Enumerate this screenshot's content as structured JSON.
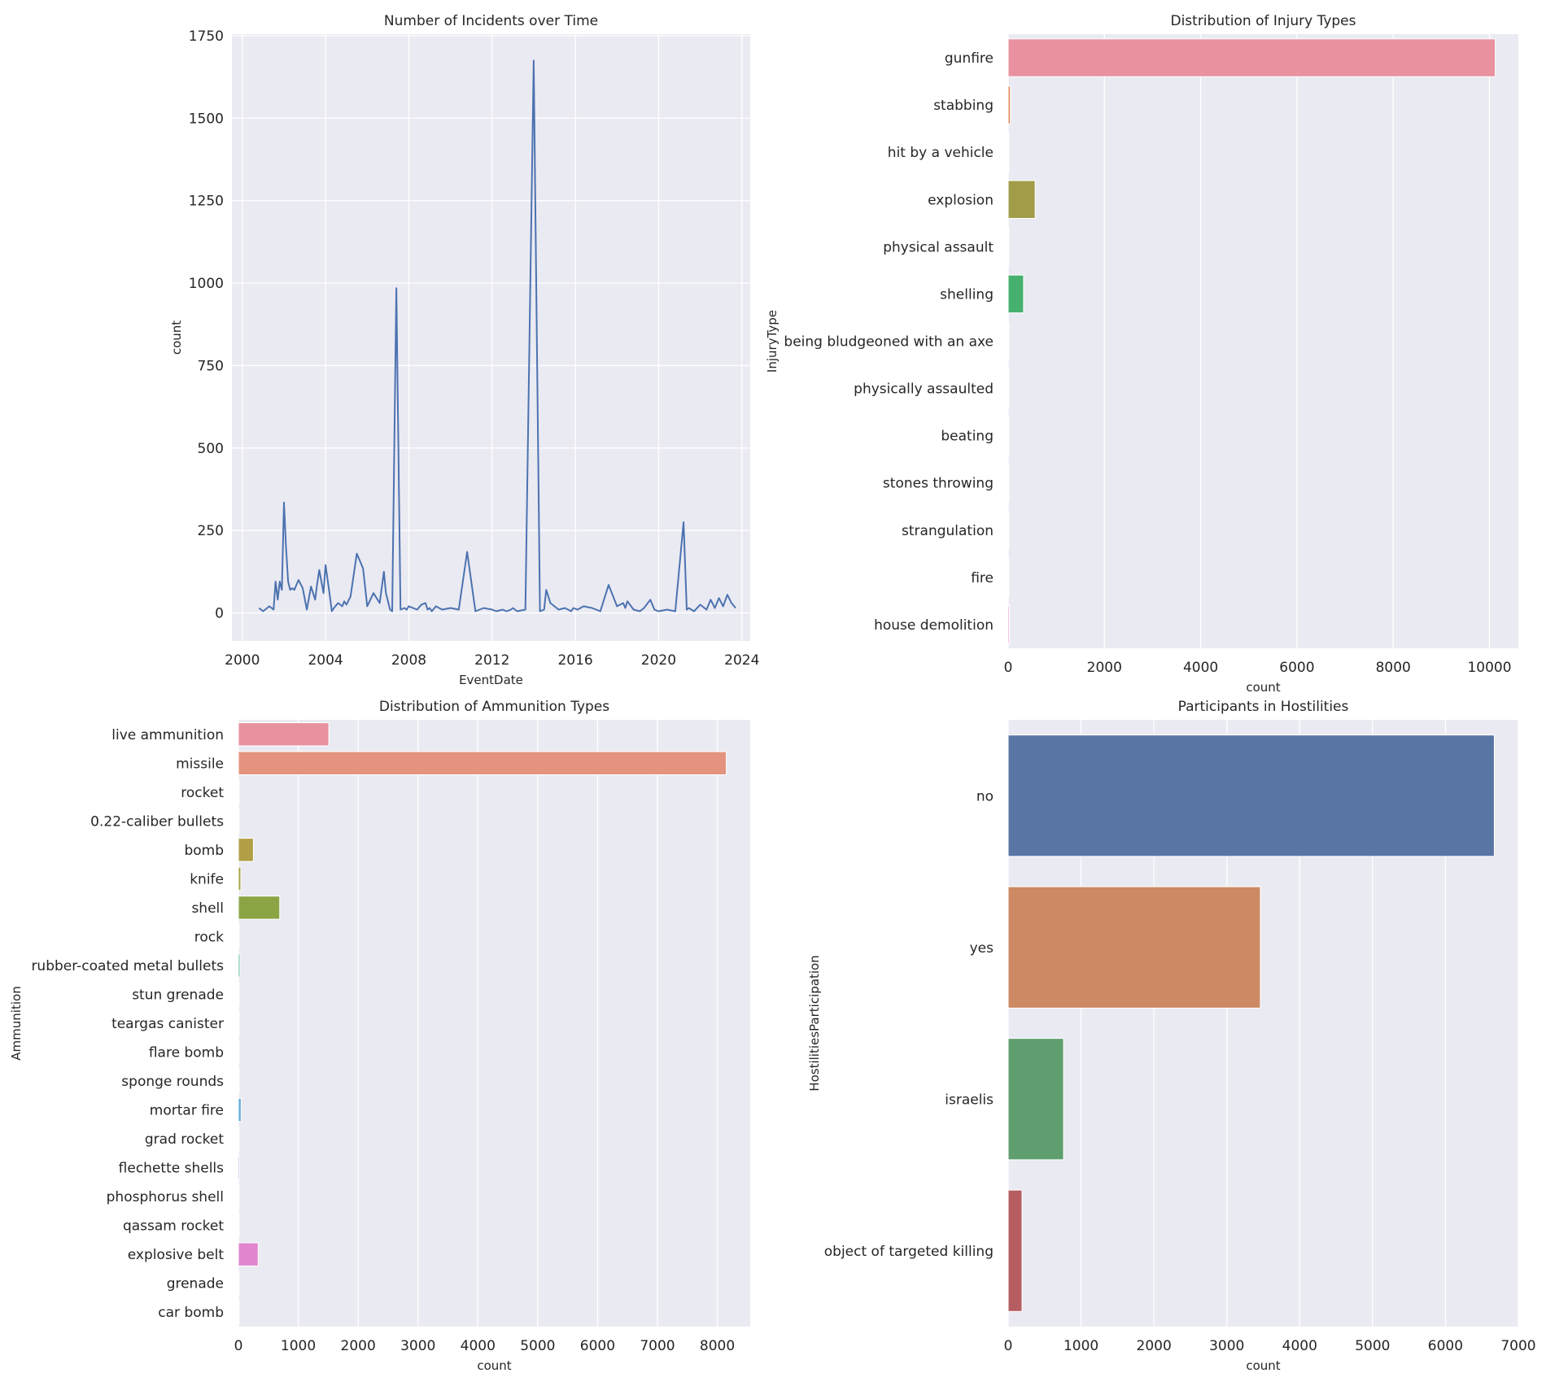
{
  "chart_data": [
    {
      "type": "line",
      "title": "Number of Incidents over Time",
      "xlabel": "EventDate",
      "ylabel": "count",
      "xlim": [
        1999.5,
        2024.4
      ],
      "ylim": [
        -85,
        1755
      ],
      "xticks": [
        2000,
        2004,
        2008,
        2012,
        2016,
        2020,
        2024
      ],
      "yticks": [
        0,
        250,
        500,
        750,
        1000,
        1250,
        1500,
        1750
      ],
      "xtick_labels": [
        "2000",
        "2004",
        "2008",
        "2012",
        "2016",
        "2020",
        "2024"
      ],
      "ytick_labels": [
        "0",
        "250",
        "500",
        "750",
        "1000",
        "1250",
        "1500",
        "1750"
      ],
      "color": "#4c72b0",
      "x": [
        2000.8,
        2001.0,
        2001.3,
        2001.5,
        2001.6,
        2001.7,
        2001.8,
        2001.9,
        2002.0,
        2002.1,
        2002.2,
        2002.3,
        2002.4,
        2002.5,
        2002.7,
        2002.9,
        2003.1,
        2003.3,
        2003.5,
        2003.6,
        2003.7,
        2003.9,
        2004.0,
        2004.2,
        2004.3,
        2004.4,
        2004.6,
        2004.8,
        2004.9,
        2005.0,
        2005.2,
        2005.5,
        2005.8,
        2006.0,
        2006.3,
        2006.5,
        2006.6,
        2006.8,
        2006.9,
        2007.1,
        2007.2,
        2007.4,
        2007.6,
        2007.8,
        2007.9,
        2008.0,
        2008.2,
        2008.4,
        2008.6,
        2008.8,
        2008.9,
        2009.0,
        2009.1,
        2009.3,
        2009.6,
        2010.0,
        2010.4,
        2010.8,
        2011.2,
        2011.6,
        2012.0,
        2012.2,
        2012.5,
        2012.7,
        2012.9,
        2013.0,
        2013.2,
        2013.6,
        2014.0,
        2014.3,
        2014.5,
        2014.6,
        2014.8,
        2015.2,
        2015.5,
        2015.8,
        2015.9,
        2016.1,
        2016.4,
        2016.8,
        2017.2,
        2017.6,
        2018.0,
        2018.3,
        2018.4,
        2018.5,
        2018.8,
        2019.1,
        2019.3,
        2019.6,
        2019.8,
        2020.0,
        2020.4,
        2020.8,
        2021.2,
        2021.35,
        2021.45,
        2021.7,
        2022.0,
        2022.3,
        2022.5,
        2022.7,
        2022.9,
        2023.1,
        2023.3,
        2023.5,
        2023.7
      ],
      "y": [
        15,
        5,
        20,
        10,
        95,
        40,
        95,
        70,
        335,
        200,
        95,
        70,
        75,
        70,
        100,
        75,
        10,
        80,
        40,
        90,
        130,
        60,
        145,
        55,
        5,
        15,
        30,
        20,
        35,
        25,
        50,
        180,
        135,
        20,
        60,
        40,
        30,
        125,
        60,
        10,
        5,
        985,
        10,
        15,
        10,
        20,
        15,
        10,
        25,
        30,
        10,
        15,
        5,
        20,
        10,
        15,
        10,
        185,
        5,
        15,
        10,
        5,
        10,
        5,
        10,
        15,
        5,
        10,
        1675,
        5,
        10,
        70,
        30,
        10,
        15,
        5,
        15,
        10,
        20,
        15,
        5,
        85,
        20,
        30,
        15,
        35,
        10,
        5,
        15,
        40,
        10,
        5,
        10,
        5,
        275,
        10,
        15,
        5,
        25,
        10,
        40,
        15,
        45,
        20,
        55,
        30,
        15
      ]
    },
    {
      "type": "bar",
      "orientation": "horizontal",
      "title": "Distribution of Injury Types",
      "xlabel": "count",
      "ylabel": "InjuryType",
      "xlim": [
        0,
        10600
      ],
      "xticks": [
        0,
        2000,
        4000,
        6000,
        8000,
        10000
      ],
      "xtick_labels": [
        "0",
        "2000",
        "4000",
        "6000",
        "8000",
        "10000"
      ],
      "categories": [
        "gunfire",
        "stabbing",
        "hit by a vehicle",
        "explosion",
        "physical assault",
        "shelling",
        "being bludgeoned with an axe",
        "physically assaulted",
        "beating",
        "stones throwing",
        "strangulation",
        "fire",
        "house demolition"
      ],
      "values": [
        10120,
        45,
        8,
        560,
        6,
        320,
        3,
        4,
        5,
        6,
        3,
        5,
        25
      ],
      "colors": [
        "#e8929f",
        "#e08a5a",
        "#c49a55",
        "#a19c47",
        "#7fa24a",
        "#46b06e",
        "#4db29a",
        "#4cb4b4",
        "#4fb0cc",
        "#6ea4d9",
        "#9a98dc",
        "#c88ad6",
        "#e087bd"
      ]
    },
    {
      "type": "bar",
      "orientation": "horizontal",
      "title": "Distribution of Ammunition Types",
      "xlabel": "count",
      "ylabel": "Ammunition",
      "xlim": [
        0,
        8550
      ],
      "xticks": [
        0,
        1000,
        2000,
        3000,
        4000,
        5000,
        6000,
        7000,
        8000
      ],
      "xtick_labels": [
        "0",
        "1000",
        "2000",
        "3000",
        "4000",
        "5000",
        "6000",
        "7000",
        "8000"
      ],
      "categories": [
        "live ammunition",
        "missile",
        "rocket",
        "0.22-caliber bullets",
        "bomb",
        "knife",
        "shell",
        "rock",
        "rubber-coated metal bullets",
        "stun grenade",
        "teargas canister",
        "flare bomb",
        "sponge rounds",
        "mortar fire",
        "grad rocket",
        "flechette shells",
        "phosphorus shell",
        "qassam rocket",
        "explosive belt",
        "grenade",
        "car bomb"
      ],
      "values": [
        1510,
        8150,
        10,
        5,
        250,
        40,
        690,
        5,
        25,
        5,
        5,
        5,
        5,
        45,
        5,
        20,
        5,
        5,
        330,
        5,
        5
      ],
      "colors": [
        "#e8929f",
        "#e3937e",
        "#d9985e",
        "#c89e52",
        "#b09f45",
        "#a5a140",
        "#8ba545",
        "#55ad64",
        "#4db28c",
        "#4cb3a3",
        "#4bb4b4",
        "#4db4c3",
        "#52b1cf",
        "#5ba8d8",
        "#7d9fdd",
        "#9a97de",
        "#b68fdb",
        "#c986d5",
        "#e085ce",
        "#e68ab6",
        "#e88fa8"
      ]
    },
    {
      "type": "bar",
      "orientation": "horizontal",
      "title": "Participants in Hostilities",
      "xlabel": "count",
      "ylabel": "HostilitiesParticipation",
      "xlim": [
        0,
        7000
      ],
      "xticks": [
        0,
        1000,
        2000,
        3000,
        4000,
        5000,
        6000,
        7000
      ],
      "xtick_labels": [
        "0",
        "1000",
        "2000",
        "3000",
        "4000",
        "5000",
        "6000",
        "7000"
      ],
      "categories": [
        "no",
        "yes",
        "israelis",
        "object of targeted killing"
      ],
      "values": [
        6670,
        3460,
        760,
        190
      ],
      "colors": [
        "#5975a4",
        "#cc8963",
        "#5f9e6e",
        "#b55d60"
      ]
    }
  ]
}
